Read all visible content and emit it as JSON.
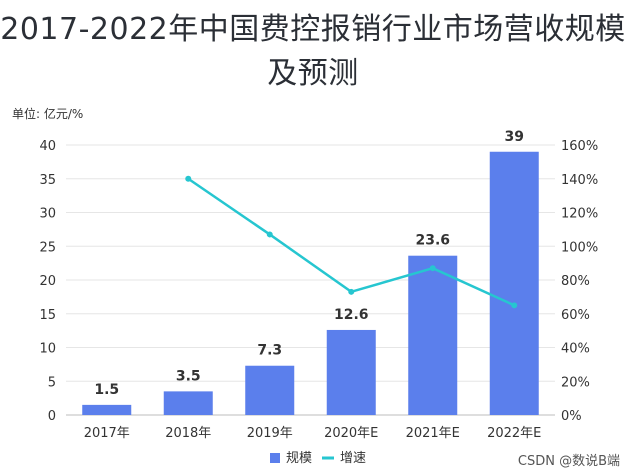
{
  "chart_data": {
    "type": "bar",
    "title": "2017-2022年中国费控报销行业市场营收规模及预测",
    "unit_label": "单位: 亿元/%",
    "categories": [
      "2017年",
      "2018年",
      "2019年",
      "2020年E",
      "2021年E",
      "2022年E"
    ],
    "series": [
      {
        "name": "规模",
        "type": "bar",
        "axis": "left",
        "color": "#5b7fec",
        "values": [
          1.5,
          3.5,
          7.3,
          12.6,
          23.6,
          39
        ],
        "labels": [
          "1.5",
          "3.5",
          "7.3",
          "12.6",
          "23.6",
          "39"
        ]
      },
      {
        "name": "增速",
        "type": "line",
        "axis": "right",
        "color": "#26c6d0",
        "values": [
          null,
          140,
          107,
          73,
          87,
          65
        ]
      }
    ],
    "ylim": [
      0,
      40
    ],
    "yticks": [
      "0",
      "5",
      "10",
      "15",
      "20",
      "25",
      "30",
      "35",
      "40"
    ],
    "y2lim": [
      0,
      160
    ],
    "y2ticks": [
      "0%",
      "20%",
      "40%",
      "60%",
      "80%",
      "100%",
      "120%",
      "140%",
      "160%"
    ],
    "legend_position": "bottom",
    "label_color": "#5b7fec"
  },
  "watermark": "CSDN @数说B端"
}
